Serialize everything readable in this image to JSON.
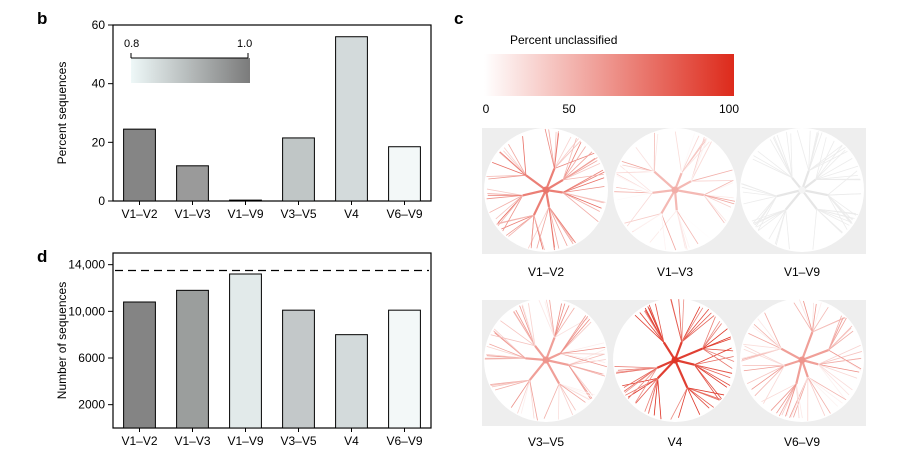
{
  "panels": {
    "b": {
      "letter": "b"
    },
    "c": {
      "letter": "c"
    },
    "d": {
      "letter": "d"
    }
  },
  "chart_data": [
    {
      "id": "b",
      "type": "bar",
      "ylabel": "Percent sequences",
      "ylim": [
        0,
        60
      ],
      "yticks": [
        0,
        20,
        40,
        60
      ],
      "categories": [
        "V1–V2",
        "V1–V3",
        "V1–V9",
        "V3–V5",
        "V4",
        "V6–V9"
      ],
      "values": [
        24.5,
        12,
        0.3,
        21.5,
        56,
        18.5
      ],
      "shade_values": [
        0.95,
        0.92,
        0.8,
        0.86,
        0.84,
        0.81
      ],
      "colorbar": {
        "min_label": "0.8",
        "max_label": "1.0",
        "colors": [
          "#eef8f8",
          "#7b7b7b"
        ]
      },
      "grid": false
    },
    {
      "id": "d",
      "type": "bar",
      "ylabel": "Number of sequences",
      "ylim": [
        0,
        15000
      ],
      "yticks": [
        2000,
        6000,
        10000,
        14000
      ],
      "ytick_labels": [
        "2000",
        "6000",
        "10,000",
        "14,000"
      ],
      "categories": [
        "V1–V2",
        "V1–V3",
        "V1–V9",
        "V3–V5",
        "V4",
        "V6–V9"
      ],
      "values": [
        10800,
        11800,
        13200,
        10100,
        8000,
        10100
      ],
      "reference_line": 13500,
      "grid": false
    },
    {
      "id": "c",
      "type": "heatmap",
      "colorbar": {
        "title": "Percent unclassified",
        "min": 0,
        "max": 100,
        "tick_labels": [
          "0",
          "50",
          "100"
        ],
        "colors": [
          "#ffffff",
          "#dd2a1b"
        ]
      },
      "trees": [
        {
          "label": "V1–V2",
          "intensity": 0.45
        },
        {
          "label": "V1–V3",
          "intensity": 0.18
        },
        {
          "label": "V1–V9",
          "intensity": 0.0
        },
        {
          "label": "V3–V5",
          "intensity": 0.3
        },
        {
          "label": "V4",
          "intensity": 0.75
        },
        {
          "label": "V6–V9",
          "intensity": 0.3
        }
      ]
    }
  ],
  "colors": {
    "bar_b": [
      "#858585",
      "#9a9a9a",
      "#e4ecec",
      "#c0c6c6",
      "#d3dadb",
      "#f3f8f8"
    ],
    "bar_d": [
      "#848484",
      "#9b9e9d",
      "#e2eaea",
      "#c3c8c9",
      "#d3dadb",
      "#f3f8f8"
    ],
    "tree_bg": "#eeeeee",
    "red": "#dd2a1b"
  }
}
